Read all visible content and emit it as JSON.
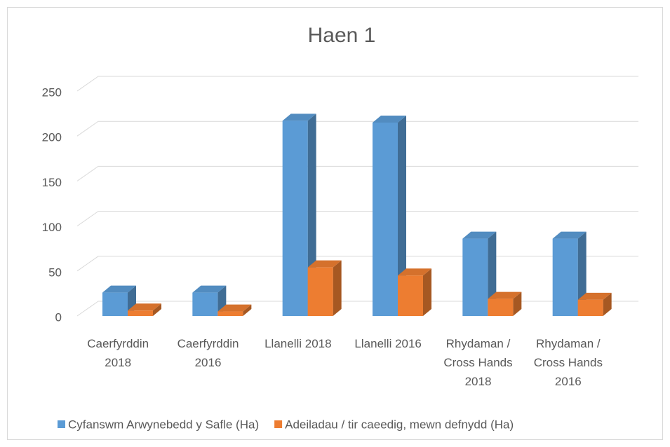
{
  "chart_data": {
    "type": "bar3d",
    "title": "Haen 1",
    "categories": [
      "Caerfyrddin 2018",
      "Caerfyrddin 2016",
      "Llanelli 2018",
      "Llanelli 2016",
      "Rhydaman / Cross Hands 2018",
      "Rhydaman / Cross Hands 2016"
    ],
    "series": [
      {
        "name": "Cyfanswm Arwynebedd y Safle (Ha)",
        "color": "#5b9bd5",
        "values": [
          26,
          26,
          217,
          215,
          86,
          86
        ]
      },
      {
        "name": "Adeiladau / tir caeedig, mewn defnydd (Ha)",
        "color": "#ed7d31",
        "values": [
          6,
          5,
          54,
          45,
          19,
          18
        ]
      }
    ],
    "ylim": [
      0,
      250
    ],
    "yticks": [
      0,
      50,
      100,
      150,
      200,
      250
    ],
    "grid": true,
    "legend": "bottom"
  }
}
